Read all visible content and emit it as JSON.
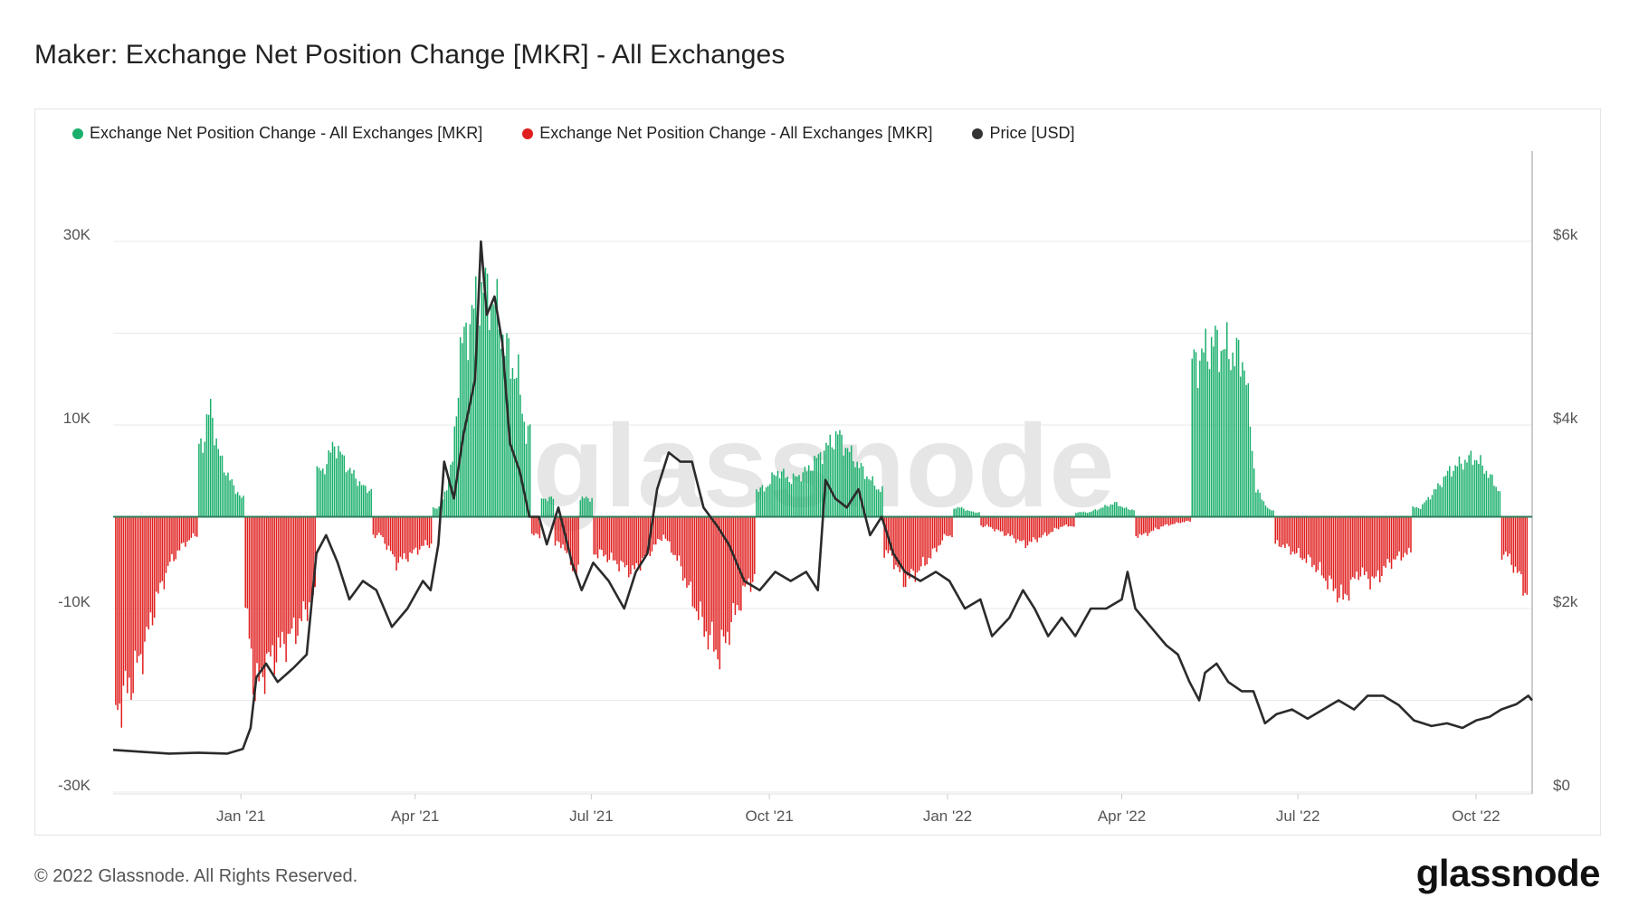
{
  "title": "Maker: Exchange Net Position Change [MKR] - All Exchanges",
  "footer": "© 2022 Glassnode. All Rights Reserved.",
  "brand": "glassnode",
  "watermark": "glassnode",
  "legend": [
    {
      "label": "Exchange Net Position Change - All Exchanges [MKR]",
      "color": "#1aaf6c"
    },
    {
      "label": "Exchange Net Position Change - All Exchanges [MKR]",
      "color": "#e01e1e"
    },
    {
      "label": "Price [USD]",
      "color": "#333333"
    }
  ],
  "chart_data": {
    "type": "bar",
    "x_range": [
      "2020-10-27",
      "2022-10-30"
    ],
    "x_ticks": [
      "Jan '21",
      "Apr '21",
      "Jul '21",
      "Oct '21",
      "Jan '22",
      "Apr '22",
      "Jul '22",
      "Oct '22"
    ],
    "y_left": {
      "range": [
        -30000,
        30000
      ],
      "ticks": [
        "30K",
        "10K",
        "-10K",
        "-30K"
      ],
      "tick_values": [
        30000,
        10000,
        -10000,
        -30000
      ]
    },
    "y_right": {
      "range": [
        0,
        6000
      ],
      "ticks": [
        "$6k",
        "$4k",
        "$2k",
        "$0"
      ],
      "tick_values": [
        6000,
        4000,
        2000,
        0
      ]
    },
    "grid": true,
    "legend_position": "top-left",
    "series": [
      {
        "name": "Exchange Net Position Change - All Exchanges [MKR]",
        "axis": "left",
        "style": "bars-green-positive-red-negative",
        "points": [
          [
            "2020-10-28",
            -21000
          ],
          [
            "2020-11-05",
            -18000
          ],
          [
            "2020-11-12",
            -14000
          ],
          [
            "2020-11-18",
            -9000
          ],
          [
            "2020-11-25",
            -5000
          ],
          [
            "2020-12-02",
            -3000
          ],
          [
            "2020-12-08",
            -2000
          ],
          [
            "2020-12-12",
            8000
          ],
          [
            "2020-12-16",
            12000
          ],
          [
            "2020-12-20",
            7000
          ],
          [
            "2020-12-26",
            4000
          ],
          [
            "2021-01-01",
            2000
          ],
          [
            "2021-01-04",
            -11000
          ],
          [
            "2021-01-08",
            -19000
          ],
          [
            "2021-01-14",
            -16000
          ],
          [
            "2021-01-22",
            -14000
          ],
          [
            "2021-01-30",
            -12000
          ],
          [
            "2021-02-06",
            -9000
          ],
          [
            "2021-02-12",
            5000
          ],
          [
            "2021-02-18",
            8000
          ],
          [
            "2021-02-26",
            5000
          ],
          [
            "2021-03-06",
            3000
          ],
          [
            "2021-03-14",
            -2000
          ],
          [
            "2021-03-22",
            -5000
          ],
          [
            "2021-03-30",
            -4000
          ],
          [
            "2021-04-06",
            -3000
          ],
          [
            "2021-04-14",
            1000
          ],
          [
            "2021-04-20",
            6000
          ],
          [
            "2021-04-24",
            18000
          ],
          [
            "2021-04-30",
            22000
          ],
          [
            "2021-05-06",
            25000
          ],
          [
            "2021-05-12",
            23000
          ],
          [
            "2021-05-18",
            18000
          ],
          [
            "2021-05-24",
            15000
          ],
          [
            "2021-05-28",
            9000
          ],
          [
            "2021-06-02",
            -2000
          ],
          [
            "2021-06-08",
            2000
          ],
          [
            "2021-06-16",
            -3000
          ],
          [
            "2021-06-22",
            -6000
          ],
          [
            "2021-06-28",
            2000
          ],
          [
            "2021-07-06",
            -4000
          ],
          [
            "2021-07-14",
            -5000
          ],
          [
            "2021-07-22",
            -6000
          ],
          [
            "2021-07-30",
            -4000
          ],
          [
            "2021-08-07",
            -2000
          ],
          [
            "2021-08-15",
            -5000
          ],
          [
            "2021-08-22",
            -9000
          ],
          [
            "2021-08-30",
            -13000
          ],
          [
            "2021-09-05",
            -15000
          ],
          [
            "2021-09-12",
            -11000
          ],
          [
            "2021-09-20",
            -7000
          ],
          [
            "2021-09-28",
            3000
          ],
          [
            "2021-10-05",
            5000
          ],
          [
            "2021-10-12",
            4000
          ],
          [
            "2021-10-20",
            5000
          ],
          [
            "2021-10-28",
            7000
          ],
          [
            "2021-11-05",
            9000
          ],
          [
            "2021-11-11",
            7000
          ],
          [
            "2021-11-18",
            5000
          ],
          [
            "2021-11-26",
            3000
          ],
          [
            "2021-12-02",
            -4000
          ],
          [
            "2021-12-09",
            -7000
          ],
          [
            "2021-12-16",
            -6000
          ],
          [
            "2021-12-24",
            -4000
          ],
          [
            "2021-12-31",
            -2000
          ],
          [
            "2022-01-07",
            1000
          ],
          [
            "2022-01-14",
            500
          ],
          [
            "2022-01-21",
            -1000
          ],
          [
            "2022-02-01",
            -2000
          ],
          [
            "2022-02-10",
            -3000
          ],
          [
            "2022-02-20",
            -2000
          ],
          [
            "2022-03-01",
            -1000
          ],
          [
            "2022-03-15",
            500
          ],
          [
            "2022-03-28",
            1500
          ],
          [
            "2022-04-04",
            800
          ],
          [
            "2022-04-12",
            -2000
          ],
          [
            "2022-04-22",
            -1000
          ],
          [
            "2022-05-04",
            -500
          ],
          [
            "2022-05-10",
            17000
          ],
          [
            "2022-05-18",
            19000
          ],
          [
            "2022-05-26",
            18000
          ],
          [
            "2022-06-03",
            17000
          ],
          [
            "2022-06-09",
            3000
          ],
          [
            "2022-06-16",
            700
          ],
          [
            "2022-06-22",
            -3000
          ],
          [
            "2022-06-30",
            -4000
          ],
          [
            "2022-07-08",
            -5000
          ],
          [
            "2022-07-16",
            -7000
          ],
          [
            "2022-07-24",
            -9000
          ],
          [
            "2022-08-01",
            -6000
          ],
          [
            "2022-08-09",
            -7000
          ],
          [
            "2022-08-17",
            -5000
          ],
          [
            "2022-08-25",
            -4000
          ],
          [
            "2022-09-02",
            1000
          ],
          [
            "2022-09-10",
            3000
          ],
          [
            "2022-09-17",
            5000
          ],
          [
            "2022-09-24",
            6000
          ],
          [
            "2022-09-30",
            6500
          ],
          [
            "2022-10-06",
            5000
          ],
          [
            "2022-10-12",
            3000
          ],
          [
            "2022-10-16",
            -4000
          ],
          [
            "2022-10-22",
            -6000
          ],
          [
            "2022-10-28",
            -9000
          ]
        ]
      },
      {
        "name": "Price [USD]",
        "axis": "right",
        "style": "line",
        "points": [
          [
            "2020-10-27",
            460
          ],
          [
            "2020-11-10",
            440
          ],
          [
            "2020-11-25",
            420
          ],
          [
            "2020-12-10",
            430
          ],
          [
            "2020-12-25",
            420
          ],
          [
            "2021-01-02",
            470
          ],
          [
            "2021-01-06",
            700
          ],
          [
            "2021-01-09",
            1250
          ],
          [
            "2021-01-14",
            1400
          ],
          [
            "2021-01-20",
            1200
          ],
          [
            "2021-01-28",
            1350
          ],
          [
            "2021-02-04",
            1500
          ],
          [
            "2021-02-09",
            2600
          ],
          [
            "2021-02-14",
            2800
          ],
          [
            "2021-02-20",
            2500
          ],
          [
            "2021-02-26",
            2100
          ],
          [
            "2021-03-05",
            2300
          ],
          [
            "2021-03-12",
            2200
          ],
          [
            "2021-03-20",
            1800
          ],
          [
            "2021-03-28",
            2000
          ],
          [
            "2021-04-05",
            2300
          ],
          [
            "2021-04-09",
            2200
          ],
          [
            "2021-04-13",
            2700
          ],
          [
            "2021-04-16",
            3600
          ],
          [
            "2021-04-21",
            3200
          ],
          [
            "2021-04-26",
            3900
          ],
          [
            "2021-05-02",
            4500
          ],
          [
            "2021-05-05",
            6000
          ],
          [
            "2021-05-08",
            5200
          ],
          [
            "2021-05-12",
            5400
          ],
          [
            "2021-05-16",
            4900
          ],
          [
            "2021-05-20",
            3800
          ],
          [
            "2021-05-25",
            3500
          ],
          [
            "2021-05-30",
            3000
          ],
          [
            "2021-06-04",
            3000
          ],
          [
            "2021-06-08",
            2700
          ],
          [
            "2021-06-14",
            3100
          ],
          [
            "2021-06-21",
            2500
          ],
          [
            "2021-06-26",
            2200
          ],
          [
            "2021-07-02",
            2500
          ],
          [
            "2021-07-10",
            2300
          ],
          [
            "2021-07-18",
            2000
          ],
          [
            "2021-07-24",
            2400
          ],
          [
            "2021-07-30",
            2600
          ],
          [
            "2021-08-04",
            3300
          ],
          [
            "2021-08-10",
            3700
          ],
          [
            "2021-08-16",
            3600
          ],
          [
            "2021-08-22",
            3600
          ],
          [
            "2021-08-28",
            3100
          ],
          [
            "2021-09-04",
            2900
          ],
          [
            "2021-09-10",
            2700
          ],
          [
            "2021-09-18",
            2300
          ],
          [
            "2021-09-26",
            2200
          ],
          [
            "2021-10-04",
            2400
          ],
          [
            "2021-10-12",
            2300
          ],
          [
            "2021-10-20",
            2400
          ],
          [
            "2021-10-26",
            2200
          ],
          [
            "2021-10-30",
            3400
          ],
          [
            "2021-11-04",
            3200
          ],
          [
            "2021-11-10",
            3100
          ],
          [
            "2021-11-16",
            3300
          ],
          [
            "2021-11-22",
            2800
          ],
          [
            "2021-11-28",
            3000
          ],
          [
            "2021-12-04",
            2600
          ],
          [
            "2021-12-10",
            2400
          ],
          [
            "2021-12-18",
            2300
          ],
          [
            "2021-12-26",
            2400
          ],
          [
            "2022-01-02",
            2300
          ],
          [
            "2022-01-10",
            2000
          ],
          [
            "2022-01-18",
            2100
          ],
          [
            "2022-01-24",
            1700
          ],
          [
            "2022-02-02",
            1900
          ],
          [
            "2022-02-09",
            2200
          ],
          [
            "2022-02-15",
            2000
          ],
          [
            "2022-02-22",
            1700
          ],
          [
            "2022-03-01",
            1900
          ],
          [
            "2022-03-08",
            1700
          ],
          [
            "2022-03-16",
            2000
          ],
          [
            "2022-03-24",
            2000
          ],
          [
            "2022-04-01",
            2100
          ],
          [
            "2022-04-04",
            2400
          ],
          [
            "2022-04-08",
            2000
          ],
          [
            "2022-04-16",
            1800
          ],
          [
            "2022-04-24",
            1600
          ],
          [
            "2022-04-30",
            1500
          ],
          [
            "2022-05-06",
            1200
          ],
          [
            "2022-05-11",
            1000
          ],
          [
            "2022-05-14",
            1300
          ],
          [
            "2022-05-20",
            1400
          ],
          [
            "2022-05-26",
            1200
          ],
          [
            "2022-06-02",
            1100
          ],
          [
            "2022-06-08",
            1100
          ],
          [
            "2022-06-14",
            750
          ],
          [
            "2022-06-20",
            850
          ],
          [
            "2022-06-28",
            900
          ],
          [
            "2022-07-06",
            800
          ],
          [
            "2022-07-14",
            900
          ],
          [
            "2022-07-22",
            1000
          ],
          [
            "2022-07-30",
            900
          ],
          [
            "2022-08-06",
            1050
          ],
          [
            "2022-08-14",
            1050
          ],
          [
            "2022-08-22",
            950
          ],
          [
            "2022-08-30",
            780
          ],
          [
            "2022-09-08",
            720
          ],
          [
            "2022-09-16",
            750
          ],
          [
            "2022-09-24",
            700
          ],
          [
            "2022-10-01",
            780
          ],
          [
            "2022-10-08",
            820
          ],
          [
            "2022-10-14",
            900
          ],
          [
            "2022-10-22",
            960
          ],
          [
            "2022-10-28",
            1050
          ],
          [
            "2022-10-30",
            1000
          ]
        ]
      }
    ]
  }
}
